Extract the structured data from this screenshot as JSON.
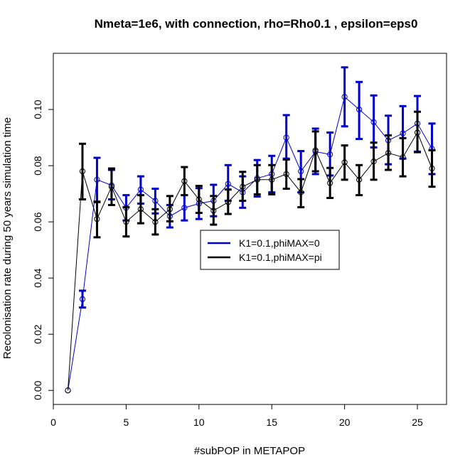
{
  "chart_data": {
    "type": "line",
    "title": "Nmeta=1e6,  with connection, rho=Rho0.1 , epsilon=eps0",
    "xlabel": "#subPOP in METAPOP",
    "ylabel": "Recolonisation rate during 50 years simulation time",
    "xlim": [
      0,
      27
    ],
    "ylim": [
      -0.005,
      0.12
    ],
    "xticks": [
      0,
      5,
      10,
      15,
      20,
      25
    ],
    "yticks": [
      0.0,
      0.02,
      0.04,
      0.06,
      0.08,
      0.1
    ],
    "ytick_labels": [
      "0.00",
      "0.02",
      "0.04",
      "0.06",
      "0.08",
      "0.10"
    ],
    "legend_position": "center-right",
    "series": [
      {
        "name": "K1=0.1,phiMAX=0",
        "color": "#0000cc",
        "x": [
          1,
          2,
          3,
          4,
          5,
          6,
          7,
          8,
          9,
          10,
          11,
          12,
          13,
          14,
          15,
          16,
          17,
          18,
          19,
          20,
          21,
          22,
          23,
          24,
          25,
          26
        ],
        "y": [
          0.0,
          0.0325,
          0.075,
          0.073,
          0.065,
          0.0715,
          0.0675,
          0.062,
          0.065,
          0.0665,
          0.0675,
          0.0735,
          0.0705,
          0.0755,
          0.077,
          0.09,
          0.078,
          0.085,
          0.084,
          0.1045,
          0.1,
          0.0955,
          0.089,
          0.0915,
          0.095,
          0.086
        ],
        "err_low": [
          0.0,
          0.0295,
          0.067,
          0.068,
          0.0605,
          0.0665,
          0.063,
          0.058,
          0.0605,
          0.061,
          0.062,
          0.0675,
          0.065,
          0.069,
          0.0705,
          0.0825,
          0.0705,
          0.077,
          0.0765,
          0.094,
          0.0895,
          0.0865,
          0.0805,
          0.0825,
          0.085,
          0.077
        ],
        "err_high": [
          0.0,
          0.0355,
          0.0828,
          0.0785,
          0.0695,
          0.0762,
          0.0718,
          0.066,
          0.0695,
          0.072,
          0.0732,
          0.0802,
          0.0762,
          0.082,
          0.0835,
          0.098,
          0.0852,
          0.0932,
          0.0918,
          0.115,
          0.1098,
          0.105,
          0.0978,
          0.1012,
          0.1048,
          0.095
        ]
      },
      {
        "name": "K1=0.1,phiMAX=pi",
        "color": "#000000",
        "x": [
          1,
          2,
          3,
          4,
          5,
          6,
          7,
          8,
          9,
          10,
          11,
          12,
          13,
          14,
          15,
          16,
          17,
          18,
          19,
          20,
          21,
          22,
          23,
          24,
          25,
          26
        ],
        "y": [
          0.0,
          0.078,
          0.061,
          0.0725,
          0.06,
          0.0645,
          0.06,
          0.0645,
          0.0745,
          0.068,
          0.064,
          0.067,
          0.0725,
          0.075,
          0.075,
          0.077,
          0.0705,
          0.0855,
          0.0738,
          0.0812,
          0.075,
          0.0815,
          0.0845,
          0.083,
          0.0918,
          0.079
        ],
        "err_low": [
          0.0,
          0.068,
          0.0545,
          0.066,
          0.0548,
          0.0595,
          0.0555,
          0.0602,
          0.0695,
          0.0632,
          0.059,
          0.0628,
          0.0675,
          0.0698,
          0.0698,
          0.0718,
          0.0652,
          0.078,
          0.0685,
          0.075,
          0.0695,
          0.075,
          0.0785,
          0.0762,
          0.0848,
          0.0725
        ],
        "err_high": [
          0.0,
          0.0878,
          0.0672,
          0.079,
          0.0652,
          0.0695,
          0.0645,
          0.0692,
          0.0795,
          0.0728,
          0.0692,
          0.0715,
          0.0778,
          0.0802,
          0.0802,
          0.0822,
          0.0752,
          0.0922,
          0.0792,
          0.0872,
          0.0802,
          0.0882,
          0.0908,
          0.0898,
          0.0992,
          0.0855
        ]
      }
    ]
  }
}
